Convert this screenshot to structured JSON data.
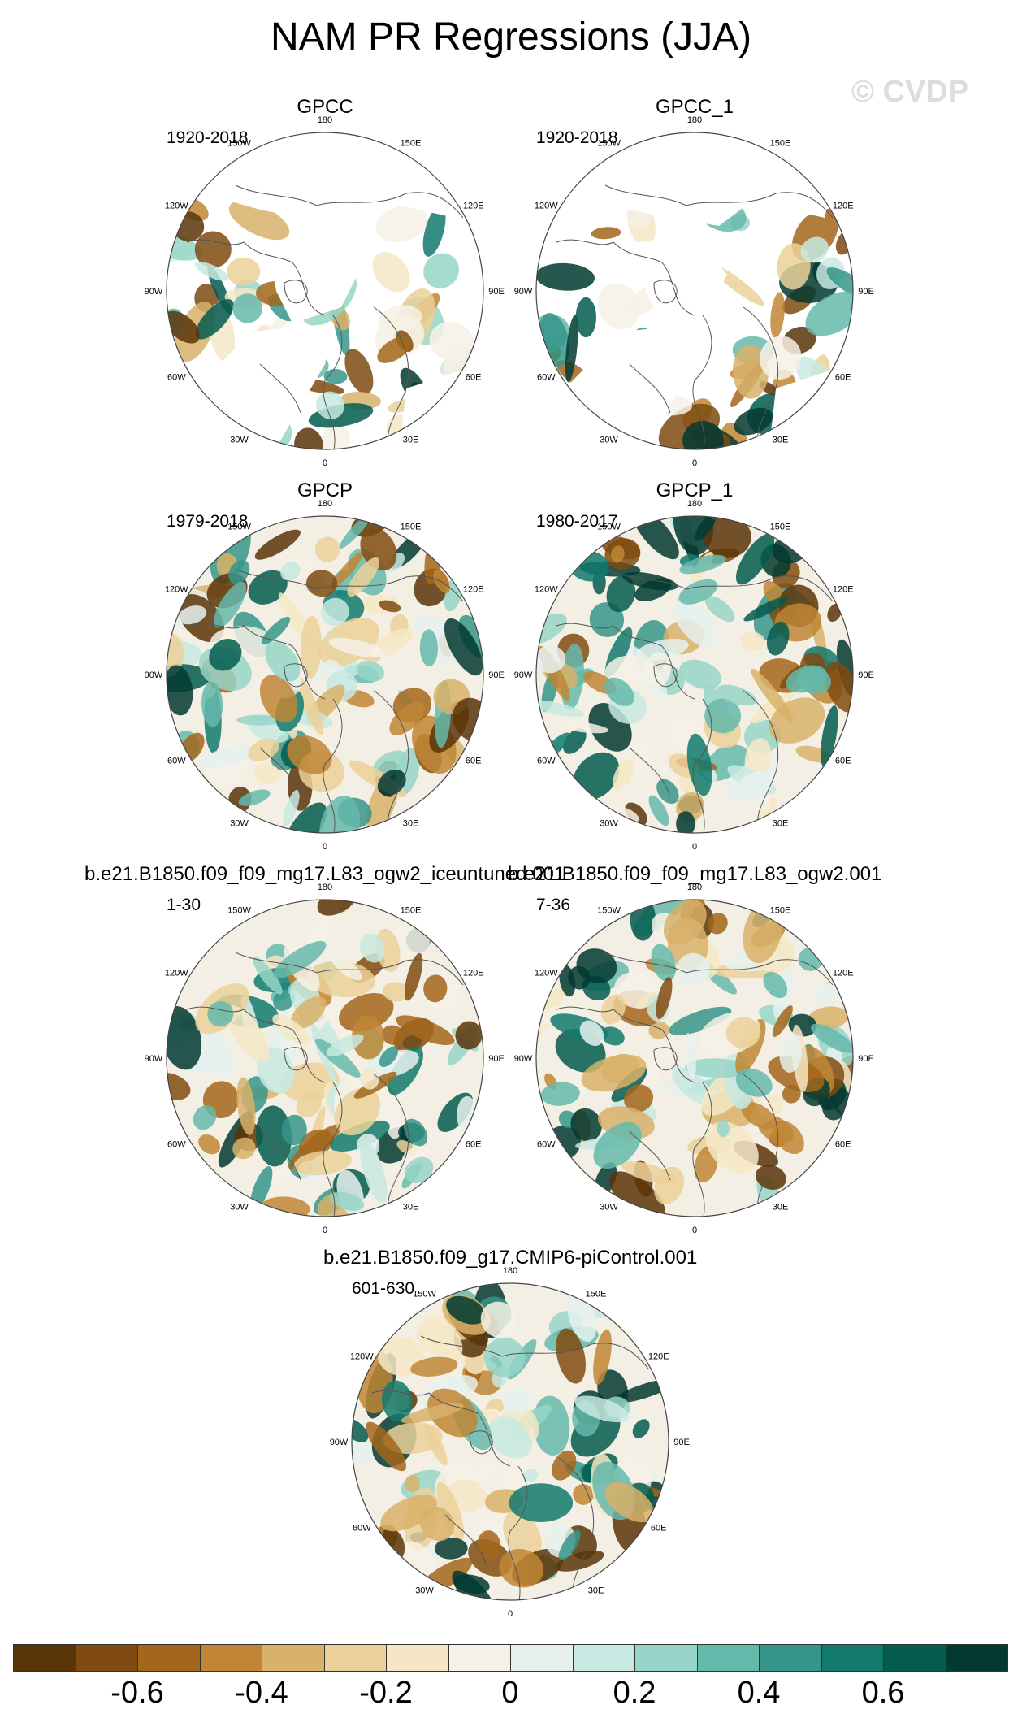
{
  "title": "NAM PR Regressions (JJA)",
  "watermark": "© CVDP",
  "panels": [
    {
      "name": "GPCC",
      "years": "1920-2018",
      "ocean_missing": true
    },
    {
      "name": "GPCC_1",
      "years": "1920-2018",
      "ocean_missing": true
    },
    {
      "name": "GPCP",
      "years": "1979-2018",
      "ocean_missing": false
    },
    {
      "name": "GPCP_1",
      "years": "1980-2017",
      "ocean_missing": false
    },
    {
      "name": "b.e21.B1850.f09_f09_mg17.L83_ogw2_iceuntuned.001",
      "years": "1-30",
      "ocean_missing": false
    },
    {
      "name": "b.e21.B1850.f09_f09_mg17.L83_ogw2.001",
      "years": "7-36",
      "ocean_missing": false
    },
    {
      "name": "b.e21.B1850.f09_g17.CMIP6-piControl.001",
      "years": "601-630",
      "ocean_missing": false
    }
  ],
  "longitude_labels": [
    "180",
    "150E",
    "120E",
    "90E",
    "60E",
    "30E",
    "0",
    "30W",
    "60W",
    "90W",
    "120W",
    "150W"
  ],
  "colorbar": {
    "colors": [
      "#5a3509",
      "#7f4b11",
      "#a3661b",
      "#c08635",
      "#d8b26a",
      "#ebd199",
      "#f5e7c6",
      "#f6f1e6",
      "#e6f1ef",
      "#c7e9e1",
      "#97d5c8",
      "#65b9ab",
      "#36958a",
      "#127a6d",
      "#045c4f",
      "#023a31"
    ],
    "labels": [
      "-0.6",
      "-0.4",
      "-0.2",
      "0",
      "0.2",
      "0.4",
      "0.6"
    ]
  }
}
